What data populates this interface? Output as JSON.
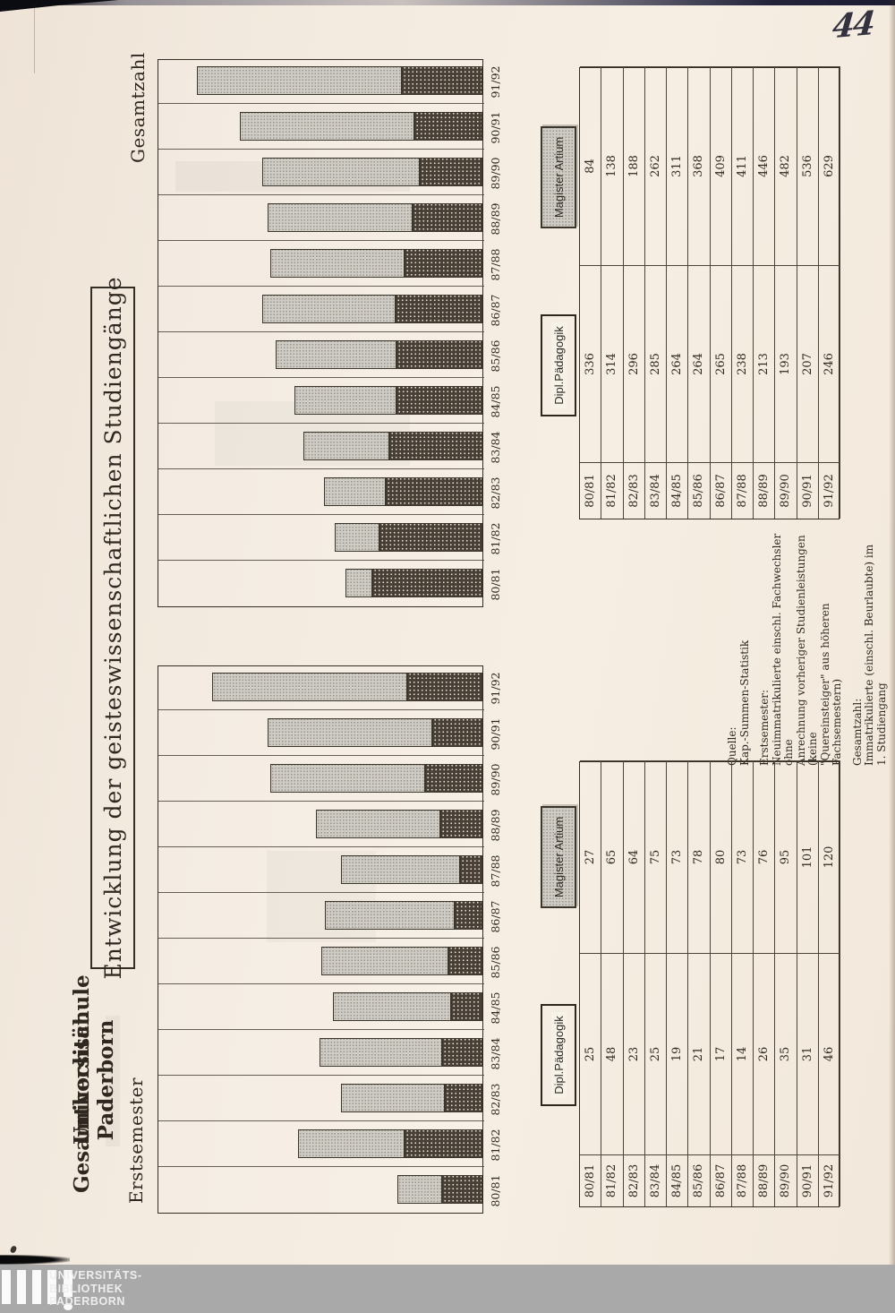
{
  "page_number": "44",
  "header": {
    "institution_line1": "Universität Paderborn",
    "institution_line2": "Gesamthochschule",
    "title": "Entwicklung der geisteswissenschaftlichen Studiengänge"
  },
  "sections": [
    {
      "label": "Erstsemester"
    },
    {
      "label": "Gesamtzahl"
    }
  ],
  "legend": {
    "magister": "Magister Artium",
    "dipl": "Dipl.Pädagogik"
  },
  "chart_data": [
    {
      "type": "bar",
      "stacked": true,
      "title": "Erstsemester",
      "categories": [
        "80/81",
        "81/82",
        "82/83",
        "83/84",
        "84/85",
        "85/86",
        "86/87",
        "87/88",
        "88/89",
        "89/90",
        "90/91",
        "91/92"
      ],
      "series": [
        {
          "name": "Magister Artium",
          "values": [
            27,
            65,
            64,
            75,
            73,
            78,
            80,
            73,
            76,
            95,
            101,
            120
          ]
        },
        {
          "name": "Dipl.Pädagogik",
          "values": [
            25,
            48,
            23,
            25,
            19,
            21,
            17,
            14,
            26,
            35,
            31,
            46
          ]
        }
      ],
      "xlabel": "",
      "ylabel": "",
      "grid": "column-separators",
      "legend_position": "below-chart"
    },
    {
      "type": "bar",
      "stacked": true,
      "title": "Gesamtzahl",
      "categories": [
        "80/81",
        "81/82",
        "82/83",
        "83/84",
        "84/85",
        "85/86",
        "86/87",
        "87/88",
        "88/89",
        "89/90",
        "90/91",
        "91/92"
      ],
      "series": [
        {
          "name": "Magister Artium",
          "values": [
            84,
            138,
            188,
            262,
            311,
            368,
            409,
            411,
            446,
            482,
            536,
            629
          ]
        },
        {
          "name": "Dipl.Pädagogik",
          "values": [
            336,
            314,
            296,
            285,
            264,
            264,
            265,
            238,
            213,
            193,
            207,
            246
          ]
        }
      ],
      "xlabel": "",
      "ylabel": "",
      "grid": "column-separators",
      "legend_position": "below-chart"
    }
  ],
  "notes": {
    "quelle_label": "Quelle:",
    "quelle_text": "Kap.-Summen-Statistik",
    "erst_label": "Erstsemester:",
    "erst_lines": [
      "Neuimmatrikulierte einschl. Fachwechsler ohne",
      "Anrechnung vorheriger Studienleistungen (keine",
      "\"Quereinsteiger\" aus höheren Fachsemestern)"
    ],
    "ges_label": "Gesamtzahl:",
    "ges_lines": [
      "Immatrikulierte (einschl. Beurlaubte) im",
      "1. Studiengang"
    ]
  },
  "footer": {
    "lines": [
      "UNIVERSITÄTS-",
      "BIBLIOTHEK",
      "PADERBORN"
    ]
  },
  "colors": {
    "paper": "#f3eadf",
    "ink": "#2e2820",
    "bar_light": "#cfccc5",
    "bar_dark": "#483f36",
    "stamp_band": "#a9a9a9"
  }
}
